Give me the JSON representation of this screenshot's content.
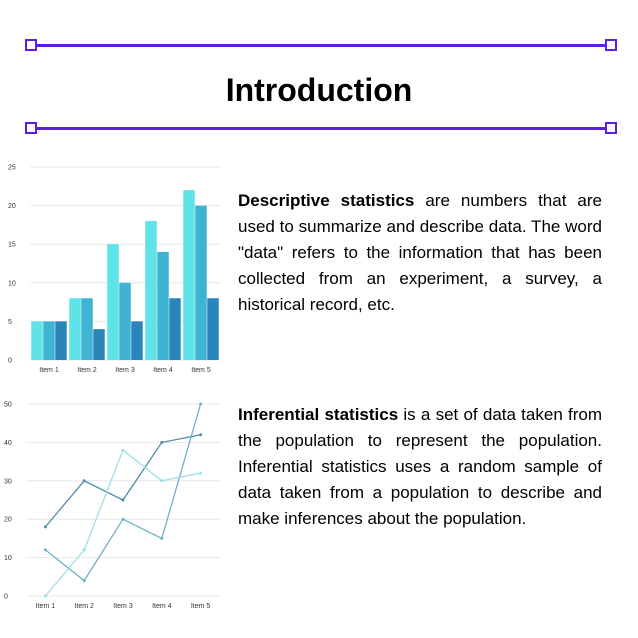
{
  "title": "Introduction",
  "paragraphs": [
    {
      "term": "Descriptive statistics",
      "text": " are numbers that are used to summarize and describe data. The word \"data\" refers to the information that has been collected from an experiment, a survey, a historical record, etc."
    },
    {
      "term": "Inferential statistics",
      "text": " is a set of data taken from the population to represent the population. Inferential statistics uses a random sample of data taken from a population to describe and make inferences about the population."
    }
  ],
  "colors": {
    "accent": "#5a1fe0"
  },
  "chart_data": [
    {
      "type": "bar",
      "categories": [
        "Item 1",
        "Item 2",
        "Item 3",
        "Item 4",
        "Item 5"
      ],
      "yticks": [
        0,
        5,
        10,
        15,
        20,
        25
      ],
      "ylim": [
        0,
        25
      ],
      "grid": true,
      "series": [
        {
          "values": [
            5,
            8,
            15,
            18,
            22
          ],
          "color": "#5de3e8"
        },
        {
          "values": [
            5,
            8,
            10,
            14,
            20
          ],
          "color": "#3fb3d2"
        },
        {
          "values": [
            5,
            4,
            5,
            8,
            8
          ],
          "color": "#2a86b8"
        }
      ]
    },
    {
      "type": "line",
      "categories": [
        "Item 1",
        "Item 2",
        "Item 3",
        "Item 4",
        "Item 5"
      ],
      "yticks": [
        0,
        10,
        20,
        30,
        40,
        50
      ],
      "ylim": [
        0,
        50
      ],
      "grid": true,
      "series": [
        {
          "values": [
            18,
            30,
            25,
            40,
            42
          ],
          "color": "#4e8ea8"
        },
        {
          "values": [
            12,
            4,
            20,
            15,
            50
          ],
          "color": "#6cb2c6"
        },
        {
          "values": [
            0,
            12,
            38,
            30,
            32
          ],
          "color": "#9be0e6"
        }
      ]
    }
  ]
}
